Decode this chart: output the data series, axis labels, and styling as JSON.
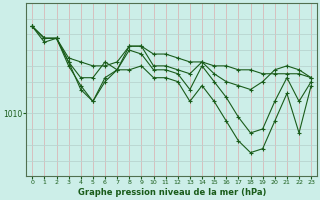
{
  "title": "Graphe pression niveau de la mer (hPa)",
  "bg_color": "#cceee8",
  "grid_color_v": "#d8b8b8",
  "grid_color_h": "#b8d4d0",
  "line_color": "#1a5c1a",
  "marker_color": "#1a5c1a",
  "x_ticks": [
    0,
    1,
    2,
    3,
    4,
    5,
    6,
    7,
    8,
    9,
    10,
    11,
    12,
    13,
    14,
    15,
    16,
    17,
    18,
    19,
    20,
    21,
    22,
    23
  ],
  "y_label_val": 1010,
  "y_min": 1002,
  "y_max": 1024,
  "series": [
    [
      1021.0,
      1019.5,
      1019.5,
      1017.0,
      1016.5,
      1016.0,
      1016.0,
      1016.5,
      1018.5,
      1018.5,
      1017.5,
      1017.5,
      1017.0,
      1016.5,
      1016.5,
      1016.0,
      1016.0,
      1015.5,
      1015.5,
      1015.0,
      1015.0,
      1015.0,
      1015.0,
      1014.5
    ],
    [
      1021.0,
      1019.5,
      1019.5,
      1016.5,
      1014.5,
      1014.5,
      1016.5,
      1015.5,
      1018.5,
      1018.5,
      1016.0,
      1016.0,
      1015.5,
      1015.0,
      1016.5,
      1015.0,
      1014.0,
      1013.5,
      1013.0,
      1014.0,
      1015.5,
      1016.0,
      1015.5,
      1014.5
    ],
    [
      1021.0,
      1019.5,
      1019.5,
      1016.0,
      1013.5,
      1011.5,
      1014.5,
      1015.5,
      1018.0,
      1017.5,
      1015.5,
      1015.5,
      1015.0,
      1013.0,
      1016.0,
      1014.0,
      1012.0,
      1009.5,
      1007.5,
      1008.0,
      1011.5,
      1014.5,
      1011.5,
      1014.0
    ],
    [
      1021.0,
      1019.0,
      1019.5,
      1016.5,
      1013.0,
      1011.5,
      1014.0,
      1015.5,
      1015.5,
      1016.0,
      1014.5,
      1014.5,
      1014.0,
      1011.5,
      1013.5,
      1011.5,
      1009.0,
      1006.5,
      1005.0,
      1005.5,
      1009.0,
      1012.5,
      1007.5,
      1013.5
    ]
  ]
}
